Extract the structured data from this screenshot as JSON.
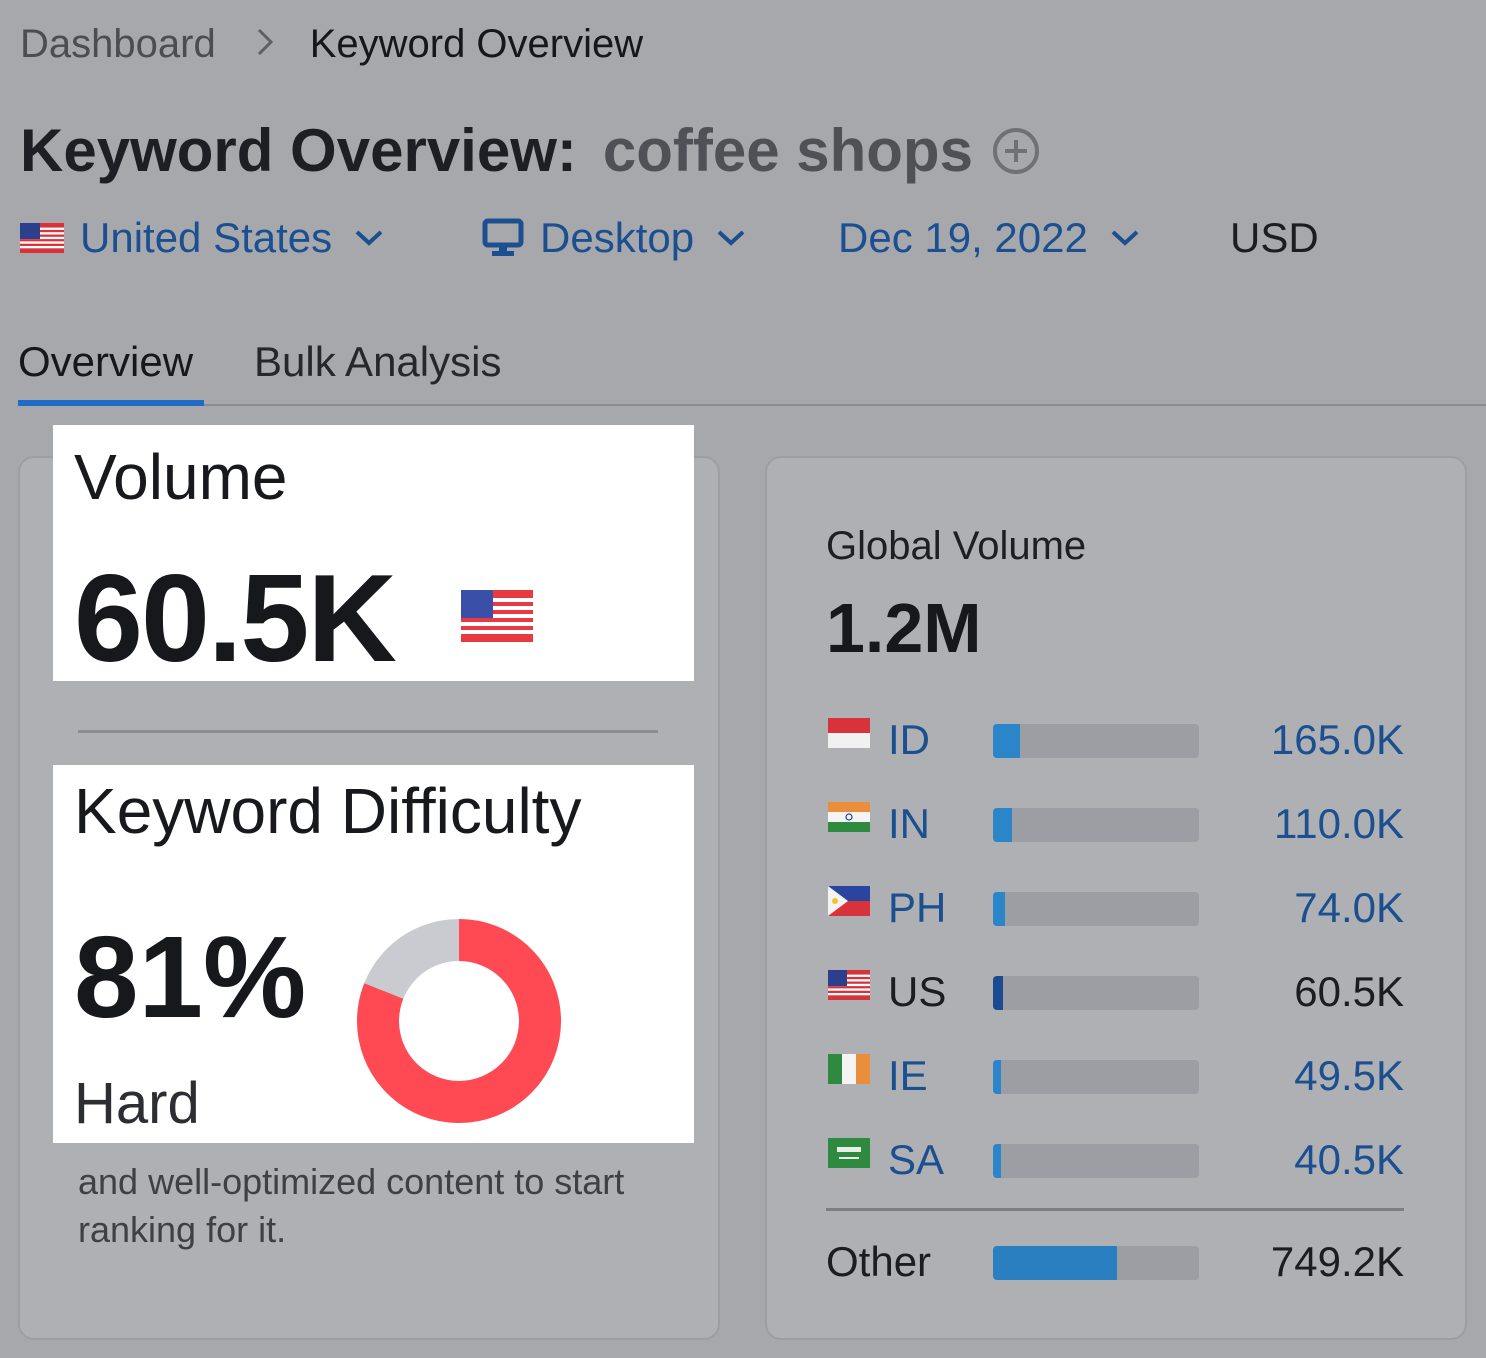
{
  "breadcrumb": {
    "home": "Dashboard",
    "separator": ">",
    "current": "Keyword Overview"
  },
  "header": {
    "title_prefix": "Keyword Overview:",
    "keyword": "coffee shops"
  },
  "filters": {
    "country": "United States",
    "device": "Desktop",
    "date": "Dec 19, 2022",
    "currency": "USD"
  },
  "tabs": [
    {
      "label": "Overview",
      "active": true
    },
    {
      "label": "Bulk Analysis",
      "active": false
    }
  ],
  "volume": {
    "label": "Volume",
    "value": "60.5K",
    "flag_icon": "us-flag-icon"
  },
  "keyword_difficulty": {
    "label": "Keyword Difficulty",
    "value": "81%",
    "percent": 81,
    "level": "Hard",
    "description_visible": "and well-optimized content to start ranking for it.",
    "color_filled": "#ff4953",
    "color_empty": "#c9cbd0"
  },
  "global_volume": {
    "label": "Global Volume",
    "value": "1.2M",
    "countries": [
      {
        "code": "ID",
        "value": "165.0K",
        "share": 0.13,
        "flag_icon": "indonesia-flag-icon"
      },
      {
        "code": "IN",
        "value": "110.0K",
        "share": 0.09,
        "flag_icon": "india-flag-icon"
      },
      {
        "code": "PH",
        "value": "74.0K",
        "share": 0.06,
        "flag_icon": "philippines-flag-icon"
      },
      {
        "code": "US",
        "value": "60.5K",
        "share": 0.05,
        "flag_icon": "us-flag-icon",
        "current": true
      },
      {
        "code": "IE",
        "value": "49.5K",
        "share": 0.04,
        "flag_icon": "ireland-flag-icon"
      },
      {
        "code": "SA",
        "value": "40.5K",
        "share": 0.04,
        "flag_icon": "saudi-arabia-flag-icon"
      }
    ],
    "other": {
      "label": "Other",
      "value": "749.2K",
      "share": 0.6
    }
  },
  "colors": {
    "link_blue": "#1b4f8f",
    "accent": "#1f6bc6",
    "bar_fill": "#2a86c9"
  }
}
